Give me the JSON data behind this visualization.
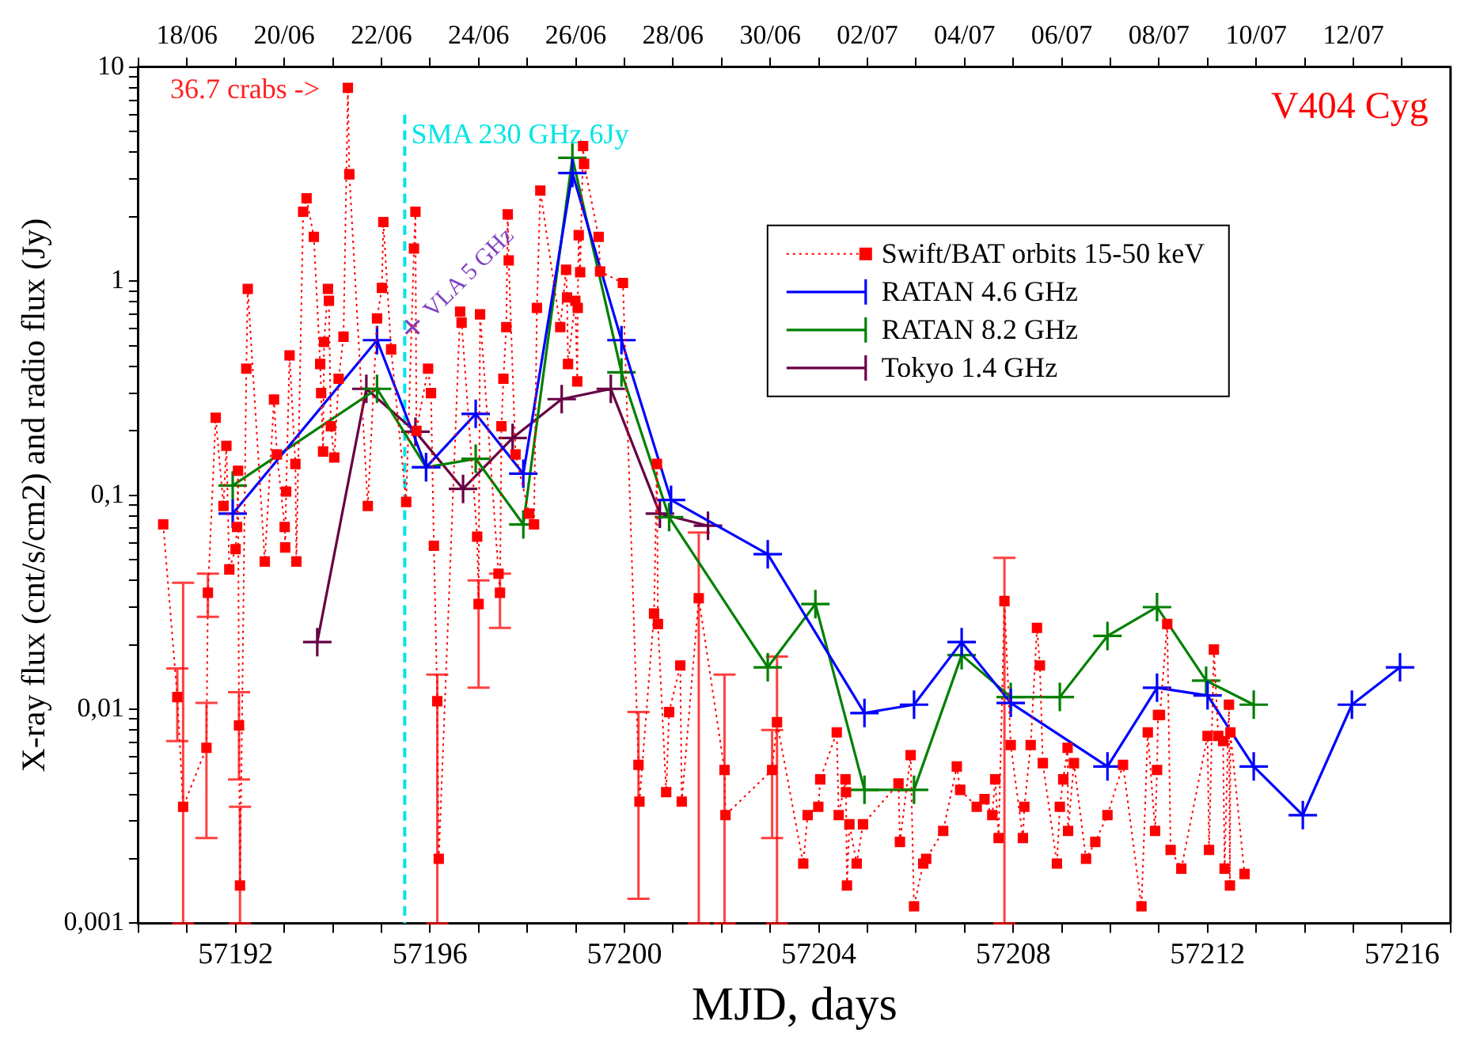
{
  "chart_data": {
    "type": "line",
    "title": "V404 Cyg",
    "xlabel": "MJD, days",
    "ylabel": "X-ray flux (cnt/s/cm2) and radio flux (Jy)",
    "xlim": [
      57190,
      57217
    ],
    "xticks": [
      {
        "value": 57190,
        "label": null
      },
      {
        "value": 57191,
        "label": null
      },
      57192,
      {
        "value": 57193,
        "label": null
      },
      {
        "value": 57194,
        "label": null
      },
      {
        "value": 57195,
        "label": null
      },
      57196,
      {
        "value": 57197,
        "label": null
      },
      {
        "value": 57198,
        "label": null
      },
      {
        "value": 57199,
        "label": null
      },
      57200,
      {
        "value": 57201,
        "label": null
      },
      {
        "value": 57202,
        "label": null
      },
      {
        "value": 57203,
        "label": null
      },
      57204,
      {
        "value": 57205,
        "label": null
      },
      {
        "value": 57206,
        "label": null
      },
      {
        "value": 57207,
        "label": null
      },
      57208,
      {
        "value": 57209,
        "label": null
      },
      {
        "value": 57210,
        "label": null
      },
      {
        "value": 57211,
        "label": null
      },
      57212,
      {
        "value": 57213,
        "label": null
      },
      {
        "value": 57214,
        "label": null
      },
      {
        "value": 57215,
        "label": null
      },
      57216,
      {
        "value": 57217,
        "label": null
      }
    ],
    "x2lim": [
      "--06-17",
      "--07-14"
    ],
    "x2ticks": [
      {
        "value": "--06-17",
        "label": null
      },
      {
        "value": "--06-18",
        "label": "18/06"
      },
      {
        "value": "--06-19",
        "label": null
      },
      {
        "value": "--06-20",
        "label": "20/06"
      },
      {
        "value": "--06-21",
        "label": null
      },
      {
        "value": "--06-22",
        "label": "22/06"
      },
      {
        "value": "--06-23",
        "label": null
      },
      {
        "value": "--06-24",
        "label": "24/06"
      },
      {
        "value": "--06-25",
        "label": null
      },
      {
        "value": "--06-26",
        "label": "26/06"
      },
      {
        "value": "--06-27",
        "label": null
      },
      {
        "value": "--06-28",
        "label": "28/06"
      },
      {
        "value": "--06-29",
        "label": null
      },
      {
        "value": "--06-30",
        "label": "30/06"
      },
      {
        "value": "--07-01",
        "label": null
      },
      {
        "value": "--07-02",
        "label": "02/07"
      },
      {
        "value": "--07-03",
        "label": null
      },
      {
        "value": "--07-04",
        "label": "04/07"
      },
      {
        "value": "--07-05",
        "label": null
      },
      {
        "value": "--07-06",
        "label": "06/07"
      },
      {
        "value": "--07-07",
        "label": null
      },
      {
        "value": "--07-08",
        "label": "08/07"
      },
      {
        "value": "--07-09",
        "label": null
      },
      {
        "value": "--07-10",
        "label": "10/07"
      },
      {
        "value": "--07-11",
        "label": null
      },
      {
        "value": "--07-12",
        "label": "12/07"
      },
      {
        "value": "--07-13",
        "label": null
      }
    ],
    "ylim": [
      0.001,
      10
    ],
    "yticks": [
      {
        "value": 0.001,
        "label": "0,001"
      },
      {
        "value": 0.002,
        "label": null
      },
      {
        "value": 0.003,
        "label": null
      },
      {
        "value": 0.004,
        "label": null
      },
      {
        "value": 0.005,
        "label": null
      },
      {
        "value": 0.006,
        "label": null
      },
      {
        "value": 0.007,
        "label": null
      },
      {
        "value": 0.008,
        "label": null
      },
      {
        "value": 0.009,
        "label": null
      },
      {
        "value": 0.01,
        "label": "0,01"
      },
      {
        "value": 0.02,
        "label": null
      },
      {
        "value": 0.03,
        "label": null
      },
      {
        "value": 0.04,
        "label": null
      },
      {
        "value": 0.05,
        "label": null
      },
      {
        "value": 0.06,
        "label": null
      },
      {
        "value": 0.07,
        "label": null
      },
      {
        "value": 0.08,
        "label": null
      },
      {
        "value": 0.09,
        "label": null
      },
      {
        "value": 0.1,
        "label": "0,1"
      },
      {
        "value": 0.2,
        "label": null
      },
      {
        "value": 0.3,
        "label": null
      },
      {
        "value": 0.4,
        "label": null
      },
      {
        "value": 0.5,
        "label": null
      },
      {
        "value": 0.6,
        "label": null
      },
      {
        "value": 0.7,
        "label": null
      },
      {
        "value": 0.8,
        "label": null
      },
      {
        "value": 0.9,
        "label": null
      },
      1,
      {
        "value": 2,
        "label": null
      },
      {
        "value": 3,
        "label": null
      },
      {
        "value": 4,
        "label": null
      },
      {
        "value": 5,
        "label": null
      },
      {
        "value": 6,
        "label": null
      },
      {
        "value": 7,
        "label": null
      },
      {
        "value": 8,
        "label": null
      },
      {
        "value": 9,
        "label": null
      },
      10
    ],
    "log": "y",
    "legend": "top right",
    "ref_lines": [
      {
        "axis": "x",
        "value": 57195.48,
        "label": "SMA 230 GHz 6Jy",
        "color": "#00e5e5",
        "line_style": "dashed"
      }
    ],
    "annotations": [
      "36.7 crabs ->"
    ],
    "series": [
      {
        "name": "Swift/BAT orbits 15-50 keV",
        "color": "#ff0000",
        "marker": "square",
        "line_style": "dotted",
        "x": [
          57190.51,
          57190.8,
          57190.92,
          57191.4,
          57191.43,
          57191.59,
          57191.75,
          57191.81,
          57191.87,
          57192.0,
          57192.03,
          57192.05,
          57192.07,
          57192.09,
          57192.22,
          57192.25,
          57192.6,
          57192.79,
          57192.85,
          57193.01,
          57193.02,
          57193.04,
          57193.11,
          57193.23,
          57193.25,
          57193.39,
          57193.46,
          57193.61,
          57193.74,
          57193.76,
          57193.8,
          57193.82,
          57193.9,
          57193.92,
          57193.96,
          57194.03,
          57194.12,
          57194.22,
          57194.31,
          57194.34,
          57194.72,
          57194.91,
          57195.01,
          57195.04,
          57195.2,
          57195.51,
          57195.67,
          57195.7,
          57195.72,
          57195.96,
          57196.02,
          57196.08,
          57196.15,
          57196.18,
          57196.62,
          57196.65,
          57196.97,
          57197.0,
          57197.03,
          57197.41,
          57197.44,
          57197.47,
          57197.51,
          57197.57,
          57197.6,
          57197.62,
          57197.76,
          57198.04,
          57198.14,
          57198.2,
          57198.27,
          57198.68,
          57198.8,
          57198.82,
          57198.84,
          57198.99,
          57199.03,
          57199.04,
          57199.06,
          57199.09,
          57199.15,
          57199.17,
          57199.47,
          57199.5,
          57199.97,
          57200.29,
          57200.31,
          57200.61,
          57200.67,
          57200.69,
          57200.86,
          57200.92,
          57201.15,
          57201.18,
          57201.53,
          57202.06,
          57202.08,
          57203.04,
          57203.14,
          57203.68,
          57203.77,
          57203.99,
          57204.03,
          57204.37,
          57204.41,
          57204.55,
          57204.56,
          57204.58,
          57204.63,
          57204.78,
          57204.91,
          57205.64,
          57205.67,
          57205.89,
          57205.96,
          57206.15,
          57206.21,
          57206.56,
          57206.84,
          57206.91,
          57207.25,
          57207.41,
          57207.57,
          57207.63,
          57207.7,
          57207.82,
          57207.95,
          57208.2,
          57208.23,
          57208.36,
          57208.49,
          57208.55,
          57208.61,
          57208.9,
          57208.96,
          57209.03,
          57209.12,
          57209.13,
          57209.25,
          57209.5,
          57209.69,
          57209.94,
          57210.26,
          57210.64,
          57210.77,
          57210.92,
          57210.96,
          57210.98,
          57211.02,
          57211.17,
          57211.24,
          57211.46,
          57212.0,
          57212.03,
          57212.13,
          57212.22,
          57212.32,
          57212.35,
          57212.44,
          57212.46,
          57212.47,
          57212.76
        ],
        "values": [
          0.073,
          0.0114,
          0.0035,
          0.0066,
          0.035,
          0.23,
          0.089,
          0.17,
          0.045,
          0.056,
          0.071,
          0.13,
          0.0084,
          0.0015,
          0.39,
          0.92,
          0.049,
          0.28,
          0.155,
          0.071,
          0.057,
          0.104,
          0.45,
          0.14,
          0.049,
          2.11,
          2.44,
          1.61,
          0.41,
          0.3,
          0.16,
          0.52,
          0.92,
          0.81,
          0.21,
          0.15,
          0.35,
          0.55,
          8.0,
          3.16,
          0.089,
          0.67,
          0.93,
          1.89,
          0.48,
          0.093,
          1.42,
          2.11,
          0.2,
          0.39,
          0.3,
          0.058,
          0.0109,
          0.002,
          0.72,
          0.64,
          0.064,
          0.031,
          0.7,
          0.043,
          0.035,
          0.21,
          0.35,
          0.61,
          2.05,
          1.25,
          0.155,
          0.082,
          0.073,
          0.75,
          2.65,
          0.61,
          1.13,
          0.84,
          0.41,
          0.81,
          0.34,
          0.75,
          1.64,
          1.1,
          4.28,
          3.53,
          1.61,
          1.11,
          0.98,
          0.0055,
          0.0037,
          0.028,
          0.14,
          0.025,
          0.0041,
          0.0097,
          0.016,
          0.0037,
          0.033,
          0.0052,
          0.0032,
          0.0052,
          0.0087,
          0.0019,
          0.0032,
          0.0035,
          0.0047,
          0.0078,
          0.0032,
          0.0047,
          0.0041,
          0.0015,
          0.0029,
          0.0019,
          0.0029,
          0.0045,
          0.0024,
          0.0061,
          0.0012,
          0.0019,
          0.002,
          0.0027,
          0.0054,
          0.0042,
          0.0035,
          0.0038,
          0.0032,
          0.0047,
          0.0025,
          0.032,
          0.0068,
          0.0025,
          0.0035,
          0.0068,
          0.024,
          0.016,
          0.0056,
          0.0019,
          0.0035,
          0.0047,
          0.0066,
          0.0027,
          0.0056,
          0.002,
          0.0024,
          0.0032,
          0.0055,
          0.0012,
          0.0078,
          0.0027,
          0.0052,
          0.0094,
          0.0094,
          0.025,
          0.0022,
          0.0018,
          0.0075,
          0.0022,
          0.019,
          0.0075,
          0.0071,
          0.0018,
          0.0105,
          0.0015,
          0.0078,
          0.0017
        ],
        "errors": [
          null,
          [
            0.0071,
            0.0155
          ],
          [
            0.001,
            0.039
          ],
          [
            0.0025,
            0.0107
          ],
          [
            0.027,
            0.043
          ],
          null,
          null,
          null,
          null,
          null,
          null,
          null,
          [
            0.0047,
            0.012
          ],
          [
            0.001,
            0.0035
          ],
          null,
          null,
          null,
          null,
          null,
          null,
          null,
          null,
          null,
          null,
          null,
          null,
          null,
          null,
          null,
          null,
          null,
          null,
          null,
          null,
          null,
          null,
          null,
          null,
          null,
          null,
          null,
          null,
          null,
          null,
          null,
          null,
          null,
          null,
          null,
          null,
          null,
          null,
          [
            0.001,
            0.0145
          ],
          null,
          null,
          null,
          null,
          [
            0.0126,
            0.04
          ],
          null,
          null,
          [
            0.024,
            0.043
          ],
          null,
          null,
          null,
          null,
          null,
          null,
          null,
          null,
          null,
          null,
          null,
          null,
          null,
          null,
          null,
          null,
          null,
          null,
          null,
          null,
          null,
          null,
          null,
          null,
          [
            0.0013,
            0.0097
          ],
          null,
          null,
          null,
          null,
          null,
          null,
          null,
          null,
          [
            0.001,
            0.067
          ],
          [
            0.001,
            0.0145
          ],
          null,
          [
            0.0025,
            0.008
          ],
          [
            0.001,
            0.0176
          ],
          null,
          null,
          null,
          null,
          null,
          null,
          null,
          null,
          null,
          null,
          null,
          null,
          null,
          null,
          null,
          null,
          null,
          null,
          null,
          null,
          null,
          null,
          null,
          null,
          null,
          null,
          [
            0.001,
            0.051
          ],
          null,
          null,
          null,
          null,
          null,
          null,
          null,
          null,
          null,
          null,
          null,
          null,
          null,
          null,
          null,
          null,
          null,
          null,
          null,
          null,
          null,
          null,
          null,
          null,
          null,
          null,
          null,
          null,
          null,
          null,
          null,
          null,
          null,
          null,
          null,
          null
        ]
      },
      {
        "name": "RATAN 4.6 GHz",
        "color": "#0000ff",
        "marker": "cross",
        "line_style": "solid",
        "x": [
          57191.94,
          57194.91,
          57195.92,
          57196.94,
          57197.92,
          57198.93,
          57199.94,
          57200.96,
          57202.95,
          57204.94,
          57205.96,
          57206.94,
          57207.95,
          57209.94,
          57210.96,
          57212.0,
          57212.95,
          57213.96,
          57214.97,
          57215.96
        ],
        "values": [
          0.082,
          0.53,
          0.135,
          0.24,
          0.126,
          3.2,
          0.53,
          0.095,
          0.053,
          0.0096,
          0.0105,
          0.0206,
          0.0107,
          0.0054,
          0.0126,
          0.0116,
          0.0054,
          0.0032,
          0.0105,
          0.0157
        ]
      },
      {
        "name": "RATAN 8.2 GHz",
        "color": "#008000",
        "marker": "cross",
        "line_style": "solid",
        "x": [
          57191.94,
          57194.91,
          57195.92,
          57196.94,
          57197.92,
          57198.93,
          57199.94,
          57200.92,
          57202.95,
          57203.93,
          57204.94,
          57205.96,
          57206.94,
          57207.95,
          57208.96,
          57209.94,
          57210.96,
          57211.97,
          57212.95
        ],
        "values": [
          0.111,
          0.314,
          0.135,
          0.148,
          0.073,
          3.77,
          0.375,
          0.079,
          0.0157,
          0.031,
          0.0042,
          0.0042,
          0.0179,
          0.0114,
          0.0114,
          0.022,
          0.03,
          0.0136,
          0.0105
        ]
      },
      {
        "name": "Tokyo 1.4 GHz",
        "color": "#660044",
        "marker": "cross",
        "line_style": "solid",
        "x": [
          57193.68,
          57194.69,
          57195.7,
          57196.68,
          57197.7,
          57198.71,
          57199.72,
          57200.73,
          57201.72
        ],
        "values": [
          0.0206,
          0.314,
          0.198,
          0.107,
          0.185,
          0.281,
          0.314,
          0.082,
          0.072
        ]
      },
      {
        "name": "VLA 5 GHz",
        "color": "#8040c0",
        "type": "scatter",
        "marker": "cross",
        "x": [
          57195.64
        ],
        "values": [
          0.61
        ]
      }
    ]
  }
}
